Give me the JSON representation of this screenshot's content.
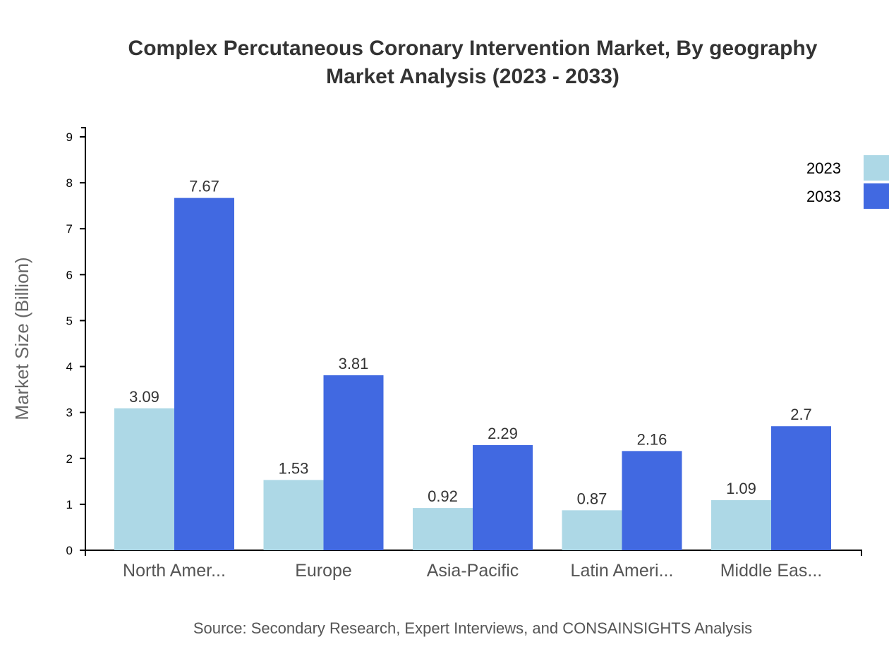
{
  "chart_data": {
    "type": "bar",
    "title": "Complex Percutaneous Coronary Intervention Market, By geography",
    "subtitle": "Market Analysis (2023 - 2033)",
    "xlabel": "",
    "ylabel": "Market Size (Billion)",
    "categories": [
      "North Amer...",
      "Europe",
      "Asia-Pacific",
      "Latin Ameri...",
      "Middle Eas..."
    ],
    "series": [
      {
        "name": "2023",
        "color": "#add8e6",
        "values": [
          3.09,
          1.53,
          0.92,
          0.87,
          1.09
        ]
      },
      {
        "name": "2033",
        "color": "#4169e1",
        "values": [
          7.67,
          3.81,
          2.29,
          2.16,
          2.7
        ]
      }
    ],
    "yticks": [
      0,
      1,
      2,
      3,
      4,
      5,
      6,
      7,
      8,
      9
    ],
    "ylim": [
      0,
      9.2
    ],
    "grid": false,
    "legend_position": "top-right",
    "source": "Source: Secondary Research, Expert Interviews, and CONSAINSIGHTS Analysis"
  }
}
